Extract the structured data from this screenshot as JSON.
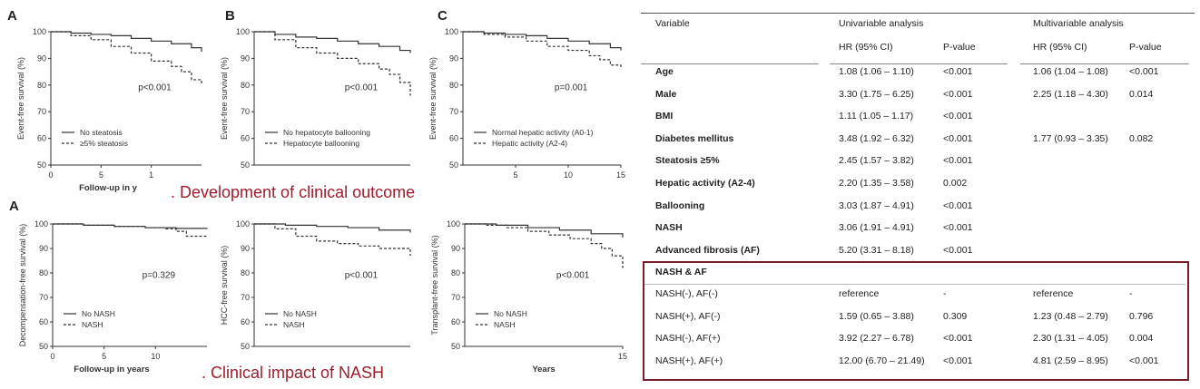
{
  "captions": {
    "top": "Development of clinical outcome",
    "bottom": "Clinical impact of NASH"
  },
  "colors": {
    "caption": "#a01c2c",
    "box": "#7a1c2a"
  },
  "chart_data": [
    {
      "type": "line",
      "panel_label": "A",
      "ylabel": "Event-free survival (%)",
      "xlabel": "Follow-up in y",
      "xticks": [
        "0",
        "5",
        "1"
      ],
      "yticks": [
        50,
        60,
        70,
        80,
        90,
        100
      ],
      "xlim": [
        0,
        15
      ],
      "ylim": [
        50,
        100
      ],
      "annotation": "p<0.001",
      "legend": [
        "No steatosis",
        "≥5% steatosis"
      ],
      "series": [
        {
          "name": "No steatosis",
          "style": "solid",
          "x": [
            0,
            2,
            4,
            6,
            8,
            10,
            12,
            14,
            15
          ],
          "y": [
            100,
            99.5,
            99,
            98.5,
            97.5,
            96.5,
            95.5,
            94,
            92.5
          ]
        },
        {
          "name": "≥5% steatosis",
          "style": "dashed",
          "x": [
            0,
            2,
            4,
            6,
            8,
            10,
            12,
            13,
            14,
            15
          ],
          "y": [
            100,
            98.5,
            97,
            94.5,
            92,
            89,
            87,
            85,
            82,
            80
          ]
        }
      ]
    },
    {
      "type": "line",
      "panel_label": "B",
      "ylabel": "Event-free survival (%)",
      "xlabel": "",
      "xticks": [],
      "yticks": [
        50,
        60,
        70,
        80,
        90,
        100
      ],
      "xlim": [
        0,
        15
      ],
      "ylim": [
        50,
        100
      ],
      "annotation": "p<0.001",
      "legend": [
        "No hepatocyte ballooning",
        "Hepatocyte ballooning"
      ],
      "series": [
        {
          "name": "No hepatocyte ballooning",
          "style": "solid",
          "x": [
            0,
            2,
            4,
            6,
            8,
            10,
            12,
            14,
            15
          ],
          "y": [
            100,
            99,
            98,
            97.5,
            96.5,
            95.5,
            94.5,
            93,
            92
          ]
        },
        {
          "name": "Hepatocyte ballooning",
          "style": "dashed",
          "x": [
            0,
            2,
            4,
            6,
            8,
            10,
            12,
            13,
            14,
            15
          ],
          "y": [
            100,
            97,
            94,
            92,
            90,
            88,
            86,
            84,
            81,
            76
          ]
        }
      ]
    },
    {
      "type": "line",
      "panel_label": "C",
      "ylabel": "Event-free survival (%)",
      "xlabel": "",
      "xticks": [
        "5",
        "10",
        "15"
      ],
      "yticks": [
        50,
        60,
        70,
        80,
        90,
        100
      ],
      "xlim": [
        0,
        15
      ],
      "ylim": [
        50,
        100
      ],
      "annotation": "p=0.001",
      "legend": [
        "Normal hepatic activity (A0-1)",
        "Hepatic activity (A2-4)"
      ],
      "series": [
        {
          "name": "Normal hepatic activity (A0-1)",
          "style": "solid",
          "x": [
            0,
            2,
            4,
            6,
            8,
            10,
            12,
            14,
            15
          ],
          "y": [
            100,
            99.5,
            99,
            98.5,
            97.5,
            96.5,
            95.5,
            94,
            93
          ]
        },
        {
          "name": "Hepatic activity (A2-4)",
          "style": "dashed",
          "x": [
            0,
            2,
            4,
            6,
            8,
            10,
            12,
            13,
            14,
            15
          ],
          "y": [
            100,
            99,
            98,
            96.5,
            94.5,
            93,
            91,
            89.5,
            87.5,
            86
          ]
        }
      ]
    },
    {
      "type": "line",
      "panel_label": "A",
      "ylabel": "Decompensation-free survival (%)",
      "xlabel": "Follow-up in years",
      "xticks": [
        "0",
        "5",
        "10"
      ],
      "yticks": [
        50,
        60,
        70,
        80,
        90,
        100
      ],
      "xlim": [
        0,
        15
      ],
      "ylim": [
        50,
        100
      ],
      "annotation": "p=0.329",
      "legend": [
        "No NASH",
        "NASH"
      ],
      "series": [
        {
          "name": "No NASH",
          "style": "solid",
          "x": [
            0,
            3,
            6,
            9,
            12,
            15
          ],
          "y": [
            100,
            99.5,
            99,
            98.5,
            98.2,
            98
          ]
        },
        {
          "name": "NASH",
          "style": "dashed",
          "x": [
            0,
            3,
            6,
            9,
            11,
            12,
            13,
            15
          ],
          "y": [
            100,
            99.5,
            99,
            98.5,
            98,
            97,
            95,
            95
          ]
        }
      ]
    },
    {
      "type": "line",
      "panel_label": "",
      "ylabel": "HCC-free survival (%)",
      "xlabel": "",
      "xticks": [],
      "yticks": [
        50,
        60,
        70,
        80,
        90,
        100
      ],
      "xlim": [
        0,
        15
      ],
      "ylim": [
        50,
        100
      ],
      "annotation": "p<0.001",
      "legend": [
        "No NASH",
        "NASH"
      ],
      "series": [
        {
          "name": "No NASH",
          "style": "solid",
          "x": [
            0,
            3,
            6,
            9,
            12,
            15
          ],
          "y": [
            100,
            99.5,
            99,
            98.5,
            97.5,
            96.5
          ]
        },
        {
          "name": "NASH",
          "style": "dashed",
          "x": [
            0,
            2,
            4,
            6,
            8,
            10,
            12,
            14,
            15
          ],
          "y": [
            100,
            98,
            95,
            93,
            92,
            91,
            90,
            90,
            87
          ]
        }
      ]
    },
    {
      "type": "line",
      "panel_label": "",
      "ylabel": "Transplant-free survival (%)",
      "xlabel": "Years",
      "xticks": [
        "15"
      ],
      "yticks": [
        50,
        60,
        70,
        80,
        90,
        100
      ],
      "xlim": [
        0,
        15
      ],
      "ylim": [
        50,
        100
      ],
      "annotation": "p<0.001",
      "legend": [
        "No NASH",
        "NASH"
      ],
      "series": [
        {
          "name": "No NASH",
          "style": "solid",
          "x": [
            0,
            3,
            6,
            9,
            12,
            15
          ],
          "y": [
            100,
            99.5,
            98.5,
            97.5,
            96,
            94.5
          ]
        },
        {
          "name": "NASH",
          "style": "dashed",
          "x": [
            0,
            2,
            4,
            6,
            8,
            10,
            12,
            13,
            14,
            15
          ],
          "y": [
            100,
            99.5,
            98.5,
            97,
            95.5,
            94,
            92,
            90,
            87,
            82
          ]
        }
      ]
    }
  ],
  "table": {
    "headers": {
      "variable": "Variable",
      "univariable": "Univariable analysis",
      "multivariable": "Multivariable analysis",
      "hr1": "HR (95% CI)",
      "p1": "P-value",
      "hr2": "HR (95% CI)",
      "p2": "P-value"
    },
    "rows": [
      {
        "variable": "Age",
        "hr1": "1.08 (1.06 – 1.10)",
        "p1": "<0.001",
        "hr2": "1.06 (1.04 – 1.08)",
        "p2": "<0.001"
      },
      {
        "variable": "Male",
        "hr1": "3.30 (1.75 – 6.25)",
        "p1": "<0.001",
        "hr2": "2.25 (1.18 – 4.30)",
        "p2": "0.014"
      },
      {
        "variable": "BMI",
        "hr1": "1.11 (1.05 – 1.17)",
        "p1": "<0.001",
        "hr2": "",
        "p2": ""
      },
      {
        "variable": "Diabetes mellitus",
        "hr1": "3.48 (1.92 – 6.32)",
        "p1": "<0.001",
        "hr2": "1.77 (0.93 – 3.35)",
        "p2": "0.082"
      },
      {
        "variable": "Steatosis ≥5%",
        "hr1": "2.45 (1.57 – 3.82)",
        "p1": "<0.001",
        "hr2": "",
        "p2": ""
      },
      {
        "variable": "Hepatic activity (A2-4)",
        "hr1": "2.20 (1.35 – 3.58)",
        "p1": "0.002",
        "hr2": "",
        "p2": ""
      },
      {
        "variable": "Ballooning",
        "hr1": "3.03 (1.87 – 4.91)",
        "p1": "<0.001",
        "hr2": "",
        "p2": ""
      },
      {
        "variable": "NASH",
        "hr1": "3.06 (1.91 – 4.91)",
        "p1": "<0.001",
        "hr2": "",
        "p2": ""
      },
      {
        "variable": "Advanced fibrosis (AF)",
        "hr1": "5.20 (3.31 – 8.18)",
        "p1": "<0.001",
        "hr2": "",
        "p2": ""
      }
    ],
    "group_label": "NASH & AF",
    "group_rows": [
      {
        "variable": "NASH(-), AF(-)",
        "hr1": "reference",
        "p1": "-",
        "hr2": "reference",
        "p2": "-"
      },
      {
        "variable": "NASH(+), AF(-)",
        "hr1": "1.59 (0.65 – 3.88)",
        "p1": "0.309",
        "hr2": "1.23 (0.48 – 2.79)",
        "p2": "0.796"
      },
      {
        "variable": "NASH(-), AF(+)",
        "hr1": "3.92 (2.27 – 6.78)",
        "p1": "<0.001",
        "hr2": "2.30 (1.31 – 4.05)",
        "p2": "0.004"
      },
      {
        "variable": "NASH(+), AF(+)",
        "hr1": "12.00 (6.70 – 21.49)",
        "p1": "<0.001",
        "hr2": "4.81 (2.59 – 8.95)",
        "p2": "<0.001"
      }
    ]
  }
}
